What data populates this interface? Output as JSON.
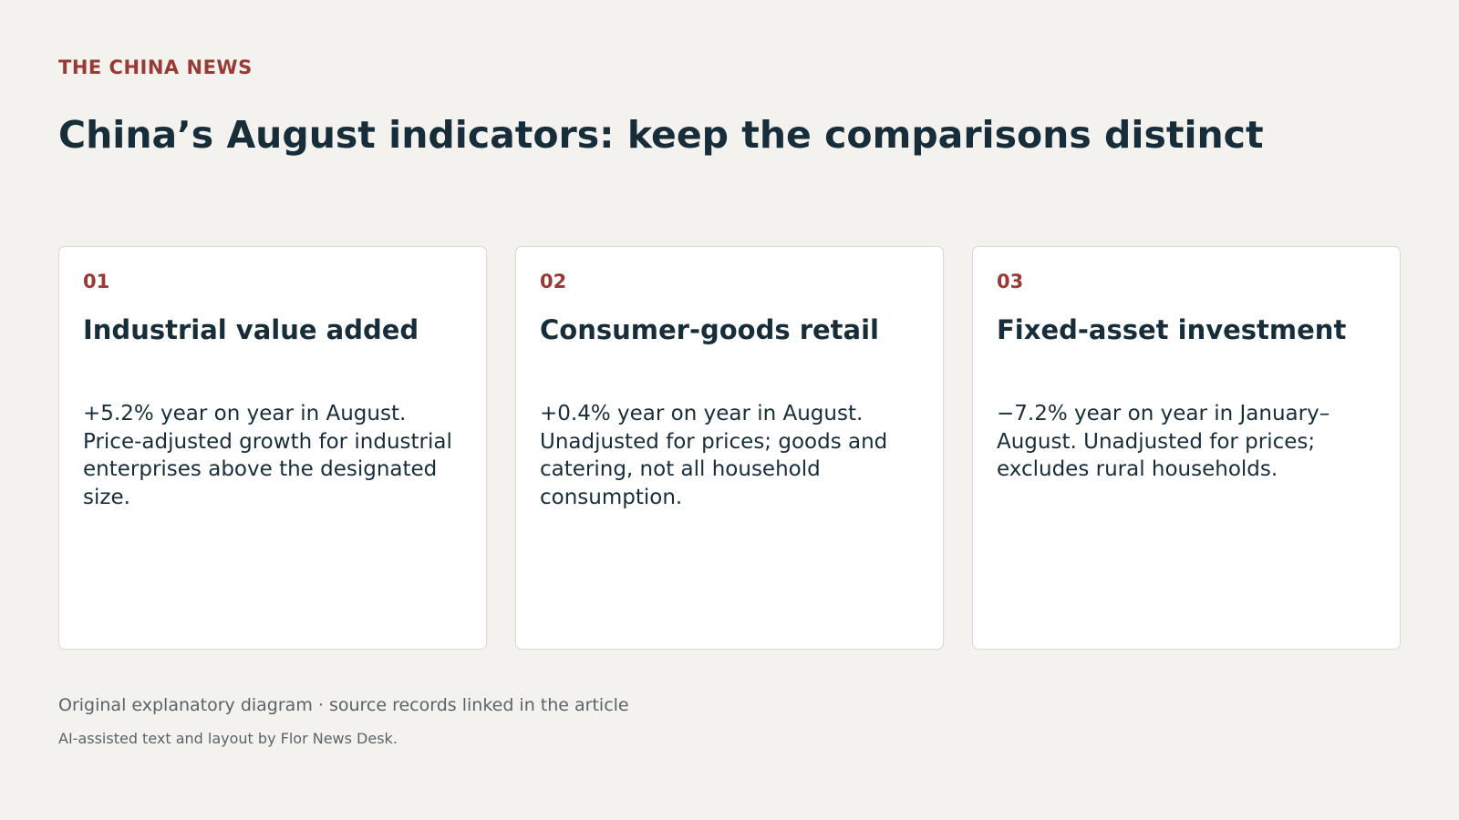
{
  "brand": "THE CHINA NEWS",
  "headline": "China’s August indicators: keep the comparisons distinct",
  "cards": [
    {
      "number": "01",
      "title": "Industrial value added",
      "body": "+5.2% year on year in August. Price-adjusted growth for industrial enterprises above the designated size."
    },
    {
      "number": "02",
      "title": "Consumer-goods retail",
      "body": "+0.4% year on year in August. Unadjusted for prices; goods and catering, not all household consumption."
    },
    {
      "number": "03",
      "title": "Fixed-asset investment",
      "body": "−7.2% year on year in January–August. Unadjusted for prices; excludes rural households."
    }
  ],
  "footer": {
    "note": "Original explanatory diagram · source records linked in the article",
    "credit": "AI-assisted text and layout by Flor News Desk."
  },
  "colors": {
    "accent": "#983a36",
    "text": "#172e3a",
    "muted": "#5a6468",
    "background": "#f3f2ee",
    "card": "#ffffff"
  }
}
